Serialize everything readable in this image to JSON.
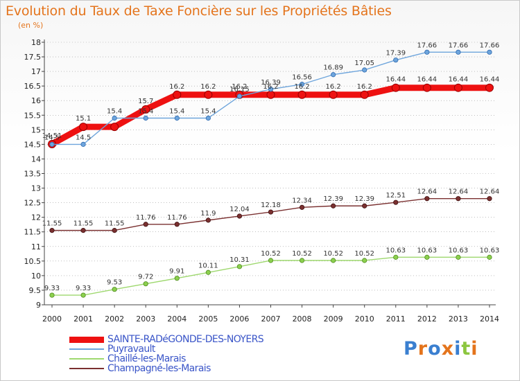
{
  "colors": {
    "title": "#e4741c",
    "grid": "#999999",
    "legend_text": "#3a55c8"
  },
  "brand": {
    "text": "Proxiti",
    "letter_colors": [
      "#3a7fd0",
      "#e4741c",
      "#3a7fd0",
      "#e4741c",
      "#3a7fd0",
      "#8cc63f",
      "#e4741c"
    ]
  },
  "chart_data": {
    "type": "line",
    "title": "Evolution du Taux de Taxe Foncière sur les Propriétés Bâties",
    "subtitle": "(en %)",
    "xlabel": "",
    "ylabel": "",
    "x": [
      "2000",
      "2001",
      "2002",
      "2003",
      "2004",
      "2005",
      "2006",
      "2007",
      "2008",
      "2009",
      "2010",
      "2011",
      "2012",
      "2013",
      "2014"
    ],
    "ylim": [
      9,
      18
    ],
    "yticks": [
      "9",
      "9.5",
      "10",
      "10.5",
      "11",
      "11.5",
      "12",
      "12.5",
      "13",
      "13.5",
      "14",
      "14.5",
      "15",
      "15.5",
      "16",
      "16.5",
      "17",
      "17.5",
      "18"
    ],
    "grid": "horizontal dotted",
    "legend_position": "bottom-left",
    "series": [
      {
        "name": "SAINTE-RADéGONDE-DES-NOYERS",
        "color": "#ee1111",
        "values": [
          14.51,
          15.1,
          15.1,
          15.7,
          16.2,
          16.2,
          16.2,
          16.2,
          16.2,
          16.2,
          16.2,
          16.44,
          16.44,
          16.44,
          16.44
        ],
        "labels": [
          "14.51",
          "15.1",
          "",
          "15.7",
          "16.2",
          "16.2",
          "16.2",
          "16.2",
          "16.2",
          "16.2",
          "16.2",
          "16.44",
          "16.44",
          "16.44",
          "16.44"
        ]
      },
      {
        "name": "Puyravault",
        "color": "#6ea5dc",
        "values": [
          14.5,
          14.5,
          15.4,
          15.4,
          15.4,
          15.4,
          16.15,
          16.39,
          16.56,
          16.89,
          17.05,
          17.39,
          17.66,
          17.66,
          17.66
        ],
        "labels": [
          "14.5",
          "14.5",
          "15.4",
          "15.4",
          "15.4",
          "15.4",
          "16.15",
          "16.39",
          "16.56",
          "16.89",
          "17.05",
          "17.39",
          "17.66",
          "17.66",
          "17.66"
        ]
      },
      {
        "name": "Chaillé-les-Marais",
        "color": "#9ed86e",
        "values": [
          9.33,
          9.33,
          9.53,
          9.72,
          9.91,
          10.11,
          10.31,
          10.52,
          10.52,
          10.52,
          10.52,
          10.63,
          10.63,
          10.63,
          10.63
        ],
        "labels": [
          "9.33",
          "9.33",
          "9.53",
          "9.72",
          "9.91",
          "10.11",
          "10.31",
          "10.52",
          "10.52",
          "10.52",
          "10.52",
          "10.63",
          "10.63",
          "10.63",
          "10.63"
        ]
      },
      {
        "name": "Champagné-les-Marais",
        "color": "#7a3030",
        "values": [
          11.55,
          11.55,
          11.55,
          11.76,
          11.76,
          11.9,
          12.04,
          12.18,
          12.34,
          12.39,
          12.39,
          12.51,
          12.64,
          12.64,
          12.64
        ],
        "labels": [
          "11.55",
          "11.55",
          "11.55",
          "11.76",
          "11.76",
          "11.9",
          "12.04",
          "12.18",
          "12.34",
          "12.39",
          "12.39",
          "12.51",
          "12.64",
          "12.64",
          "12.64"
        ]
      }
    ]
  }
}
